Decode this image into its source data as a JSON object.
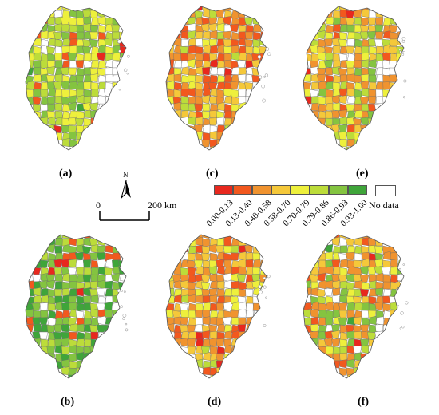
{
  "panels": [
    {
      "label": "(a)",
      "seed": 11,
      "bias": 0.82,
      "spread": 0.12
    },
    {
      "label": "(b)",
      "seed": 23,
      "bias": 0.9,
      "spread": 0.08
    },
    {
      "label": "(c)",
      "seed": 37,
      "bias": 0.55,
      "spread": 0.3
    },
    {
      "label": "(d)",
      "seed": 41,
      "bias": 0.58,
      "spread": 0.25
    },
    {
      "label": "(e)",
      "seed": 53,
      "bias": 0.68,
      "spread": 0.25
    },
    {
      "label": "(f)",
      "seed": 67,
      "bias": 0.66,
      "spread": 0.28
    }
  ],
  "legend": {
    "classes": [
      {
        "label": "0.00-0.13",
        "color": "#e8281e"
      },
      {
        "label": "0.13-0.40",
        "color": "#f2581e"
      },
      {
        "label": "0.40-0.58",
        "color": "#f0932f"
      },
      {
        "label": "0.58-0.70",
        "color": "#f5c83a"
      },
      {
        "label": "0.70-0.79",
        "color": "#eef03c"
      },
      {
        "label": "0.79-0.86",
        "color": "#bcdc3a"
      },
      {
        "label": "0.86-0.93",
        "color": "#84c440"
      },
      {
        "label": "0.93-1.00",
        "color": "#3fa53a"
      }
    ],
    "no_data_label": "No data",
    "no_data_color": "#ffffff"
  },
  "north_arrow": {
    "label": "N"
  },
  "scale_bar": {
    "start_label": "0",
    "end_label": "200 km"
  }
}
